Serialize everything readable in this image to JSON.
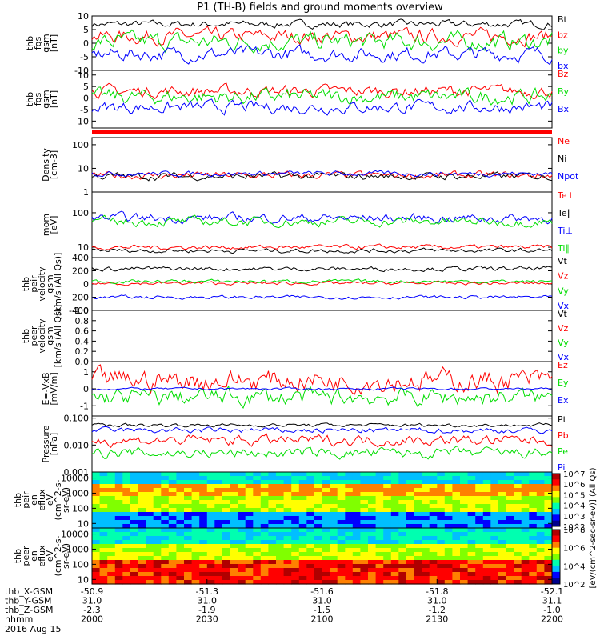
{
  "title": "P1 (TH-B) fields and ground moments overview",
  "colors": {
    "black": "#000000",
    "red": "#ff0000",
    "green": "#00dd00",
    "blue": "#0000ff"
  },
  "x_axis": {
    "rows": [
      {
        "label": "thb_X-GSM",
        "values": [
          "-50.9",
          "-51.3",
          "-51.6",
          "-51.8",
          "-52.1"
        ]
      },
      {
        "label": "thb_Y-GSM",
        "values": [
          "31.0",
          "31.0",
          "31.0",
          "31.0",
          "31.1"
        ]
      },
      {
        "label": "thb_Z-GSM",
        "values": [
          "-2.3",
          "-1.9",
          "-1.5",
          "-1.2",
          "-1.0"
        ]
      },
      {
        "label": "hhmm",
        "values": [
          "2000",
          "2030",
          "2100",
          "2130",
          "2200"
        ]
      }
    ],
    "date": "2016 Aug 15",
    "time_range": [
      "20:00",
      "22:00"
    ]
  },
  "colorbar": {
    "upper_ticks": [
      "10^2",
      "10^3",
      "10^4",
      "10^5",
      "10^6",
      "10^7"
    ],
    "lower_ticks": [
      "10^2",
      "10^4",
      "10^6",
      "10^8"
    ],
    "label": "[eV/(cm^2-sec-sr-eV)] (All Qs)",
    "colormap": [
      "#00008b",
      "#0000ff",
      "#00bfff",
      "#00ffb0",
      "#80ff00",
      "#ffff00",
      "#ff8000",
      "#ff0000",
      "#b00000"
    ]
  },
  "chart_data": [
    {
      "type": "line",
      "ylabel": [
        "thb",
        "fgs",
        "gsm",
        "[nT]"
      ],
      "yticks": [
        "10",
        "5",
        "0",
        "-5",
        "-10"
      ],
      "ylim": [
        -10,
        10
      ],
      "series": [
        {
          "name": "Bt",
          "color": "#000000",
          "base": 7,
          "noise": 1.0
        },
        {
          "name": "bz",
          "color": "#ff0000",
          "base": 2.5,
          "noise": 2.0
        },
        {
          "name": "by",
          "color": "#00dd00",
          "base": 0.5,
          "noise": 2.5
        },
        {
          "name": "bx",
          "color": "#0000ff",
          "base": -4,
          "noise": 2.0
        }
      ]
    },
    {
      "type": "line",
      "ylabel": [
        "thb",
        "fgs",
        "gsm",
        "[nT]"
      ],
      "yticks": [
        "10",
        "5",
        "0",
        "-5",
        "-10"
      ],
      "ylim": [
        -13,
        12
      ],
      "series": [
        {
          "name": "Bz",
          "color": "#ff0000",
          "base": 3,
          "noise": 2.0
        },
        {
          "name": "By",
          "color": "#00dd00",
          "base": 0.5,
          "noise": 2.5
        },
        {
          "name": "Bx",
          "color": "#0000ff",
          "base": -4,
          "noise": 2.0
        }
      ]
    },
    {
      "type": "line",
      "ylabel": [
        "Density",
        "[cm-3]"
      ],
      "yticks": [
        "100",
        "10",
        "1"
      ],
      "scale": "log",
      "ylim": [
        1,
        200
      ],
      "series": [
        {
          "name": "Ne",
          "color": "#ff0000",
          "base": 5,
          "noise": 0.12
        },
        {
          "name": "Ni",
          "color": "#000000",
          "base": 4.6,
          "noise": 0.12
        },
        {
          "name": "Npot",
          "color": "#0000ff",
          "base": 6,
          "noise": 0.08
        }
      ]
    },
    {
      "type": "line",
      "ylabel": [
        "mom",
        "[eV]"
      ],
      "yticks": [
        "100",
        "10"
      ],
      "scale": "log",
      "ylim": [
        5,
        400
      ],
      "series": [
        {
          "name": "Te⊥",
          "color": "#ff0000",
          "base": 10,
          "noise": 0.05
        },
        {
          "name": "Te∥",
          "color": "#000000",
          "base": 8,
          "noise": 0.05
        },
        {
          "name": "Ti⊥",
          "color": "#0000ff",
          "base": 70,
          "noise": 0.1
        },
        {
          "name": "Ti∥",
          "color": "#00dd00",
          "base": 55,
          "noise": 0.1
        }
      ]
    },
    {
      "type": "line",
      "ylabel": [
        "thb",
        "peir",
        "velocity",
        "gsm",
        "[km/s (All Qs)]"
      ],
      "yticks": [
        "400",
        "200",
        "0",
        "-200",
        "-400"
      ],
      "ylim": [
        -400,
        400
      ],
      "series": [
        {
          "name": "Vt",
          "color": "#000000",
          "base": 230,
          "noise": 25
        },
        {
          "name": "Vz",
          "color": "#ff0000",
          "base": 10,
          "noise": 20
        },
        {
          "name": "Vy",
          "color": "#00dd00",
          "base": 40,
          "noise": 20
        },
        {
          "name": "Vx",
          "color": "#0000ff",
          "base": -200,
          "noise": 20
        }
      ]
    },
    {
      "type": "line",
      "ylabel": [
        "thb",
        "peer",
        "velocity",
        "gsm",
        "[km/s (All Qs)]"
      ],
      "yticks": [
        "1.0",
        "0.8",
        "0.6",
        "0.4",
        "0.2",
        "0.0"
      ],
      "ylim": [
        0,
        1
      ],
      "series": [
        {
          "name": "Vt",
          "color": "#000000"
        },
        {
          "name": "Vz",
          "color": "#ff0000"
        },
        {
          "name": "Vy",
          "color": "#00dd00"
        },
        {
          "name": "Vx",
          "color": "#0000ff"
        }
      ]
    },
    {
      "type": "line",
      "ylabel": [
        "E=-VxB",
        "[mV/m]"
      ],
      "yticks": [
        "1",
        "0",
        "-1"
      ],
      "ylim": [
        -1.6,
        1.6
      ],
      "series": [
        {
          "name": "Ez",
          "color": "#ff0000",
          "base": 0.5,
          "noise": 0.5
        },
        {
          "name": "Ey",
          "color": "#00dd00",
          "base": -0.5,
          "noise": 0.4
        },
        {
          "name": "Ex",
          "color": "#0000ff",
          "base": 0,
          "noise": 0.05
        }
      ]
    },
    {
      "type": "line",
      "ylabel": [
        "Pressure",
        "[nPa]"
      ],
      "yticks": [
        "0.100",
        "0.010",
        "0.001"
      ],
      "scale": "log",
      "ylim": [
        0.001,
        0.12
      ],
      "series": [
        {
          "name": "Pt",
          "color": "#000000",
          "base": 0.055,
          "noise": 0.05
        },
        {
          "name": "Pb",
          "color": "#ff0000",
          "base": 0.015,
          "noise": 0.15
        },
        {
          "name": "Pe",
          "color": "#00dd00",
          "base": 0.005,
          "noise": 0.15
        },
        {
          "name": "Pi",
          "color": "#0000ff",
          "base": 0.035,
          "noise": 0.08
        }
      ]
    },
    {
      "type": "heatmap",
      "ylabel": [
        "thb",
        "peir",
        "en",
        "eflux",
        "eV",
        "(cm^2-s-",
        "sr-eV)"
      ],
      "yticks": [
        "10000",
        "1000",
        "100",
        "10"
      ],
      "scale": "log",
      "ylim": [
        5,
        25000
      ]
    },
    {
      "type": "heatmap",
      "ylabel": [
        "thb",
        "peer",
        "en",
        "eflux",
        "eV",
        "(cm^2-s-",
        "sr-eV)"
      ],
      "yticks": [
        "10000",
        "1000",
        "100",
        "10"
      ],
      "scale": "log",
      "ylim": [
        5,
        25000
      ]
    }
  ]
}
